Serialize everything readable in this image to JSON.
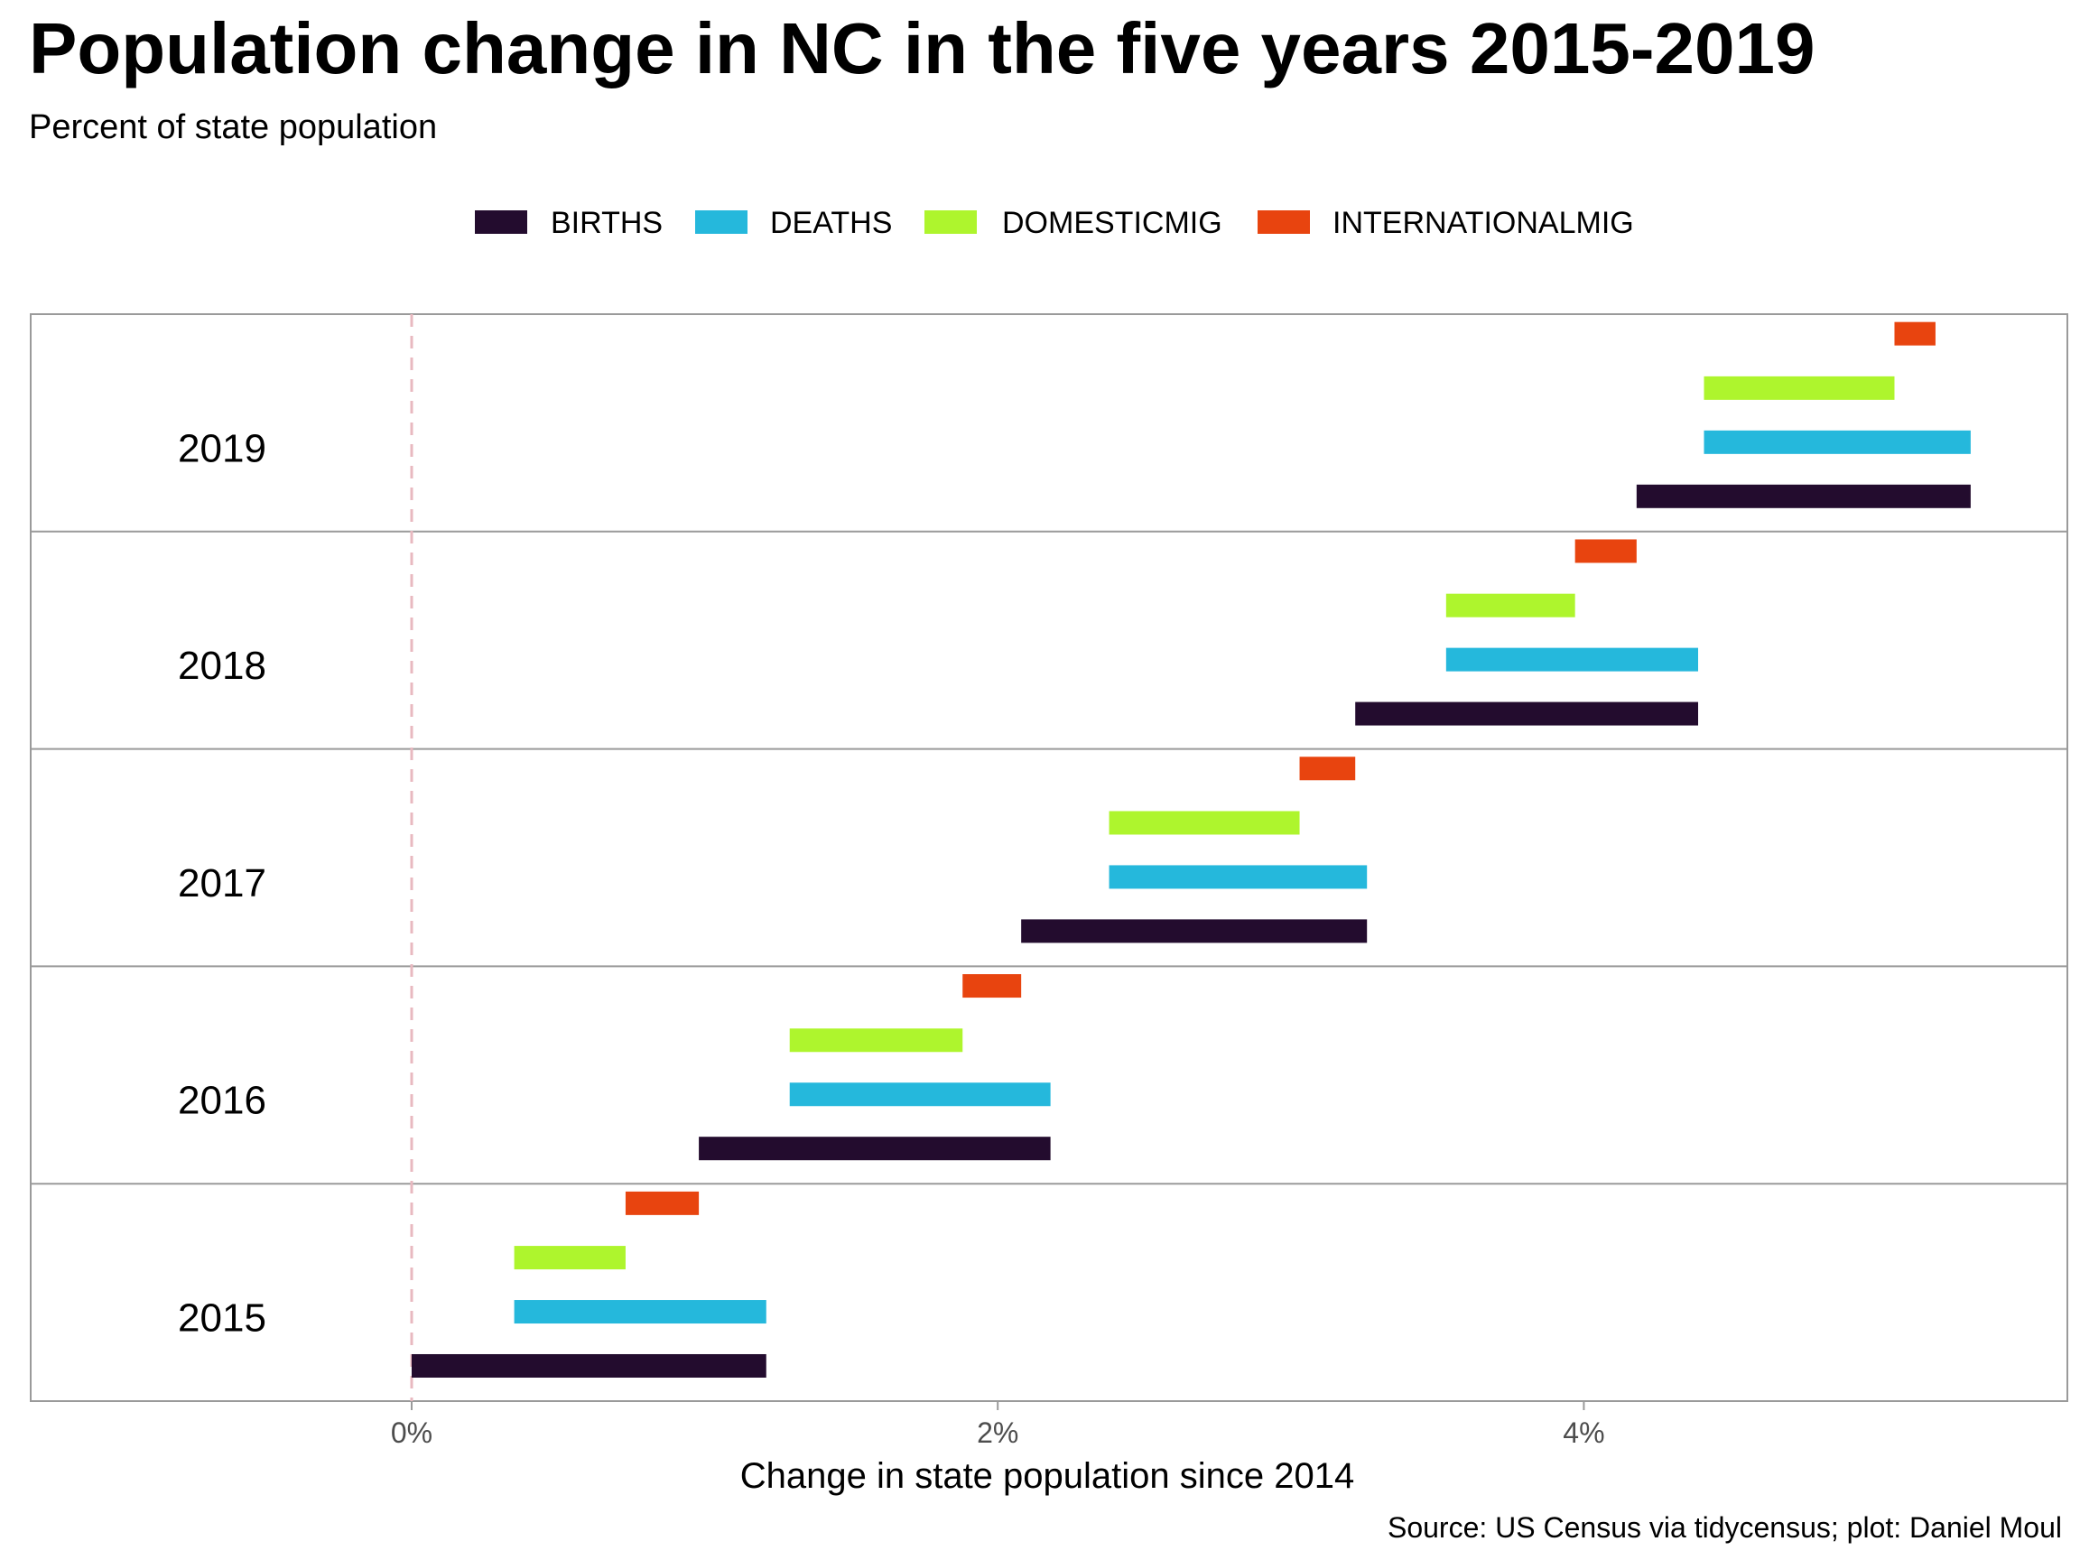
{
  "colors": {
    "background": "#ffffff",
    "panel_border": "#9a9a9a",
    "zero_line": "#e8b9c0",
    "births": "#230c2e",
    "deaths": "#25b8dc",
    "domesticmig": "#aef52d",
    "internationalmig": "#e8440f",
    "tick_text": "#4d4d4d"
  },
  "chart_data": {
    "type": "waterfall-bar",
    "title": "Population change in NC in the five years 2015-2019",
    "subtitle": "Percent of state population",
    "xlabel": "Change in state population since 2014",
    "caption": "Source: US Census via tidycensus; plot: Daniel Moul",
    "x_ticks": [
      "0%",
      "2%",
      "4%"
    ],
    "x_tick_values": [
      0,
      2,
      4
    ],
    "xlim": [
      -1.3,
      5.65
    ],
    "legend_position": "top",
    "legend": [
      {
        "key": "births",
        "label": "BIRTHS",
        "color": "#230c2e"
      },
      {
        "key": "deaths",
        "label": "DEATHS",
        "color": "#25b8dc"
      },
      {
        "key": "domesticmig",
        "label": "DOMESTICMIG",
        "color": "#aef52d"
      },
      {
        "key": "internationalmig",
        "label": "INTERNATIONALMIG",
        "color": "#e8440f"
      }
    ],
    "facets": [
      {
        "year": "2019",
        "segments": [
          {
            "component": "births",
            "start": 4.18,
            "end": 5.32
          },
          {
            "component": "deaths",
            "start": 4.41,
            "end": 5.32
          },
          {
            "component": "domesticmig",
            "start": 4.41,
            "end": 5.06
          },
          {
            "component": "internationalmig",
            "start": 5.06,
            "end": 5.2
          }
        ]
      },
      {
        "year": "2018",
        "segments": [
          {
            "component": "births",
            "start": 3.22,
            "end": 4.39
          },
          {
            "component": "deaths",
            "start": 3.53,
            "end": 4.39
          },
          {
            "component": "domesticmig",
            "start": 3.53,
            "end": 3.97
          },
          {
            "component": "internationalmig",
            "start": 3.97,
            "end": 4.18
          }
        ]
      },
      {
        "year": "2017",
        "segments": [
          {
            "component": "births",
            "start": 2.08,
            "end": 3.26
          },
          {
            "component": "deaths",
            "start": 2.38,
            "end": 3.26
          },
          {
            "component": "domesticmig",
            "start": 2.38,
            "end": 3.03
          },
          {
            "component": "internationalmig",
            "start": 3.03,
            "end": 3.22
          }
        ]
      },
      {
        "year": "2016",
        "segments": [
          {
            "component": "births",
            "start": 0.98,
            "end": 2.18
          },
          {
            "component": "deaths",
            "start": 1.29,
            "end": 2.18
          },
          {
            "component": "domesticmig",
            "start": 1.29,
            "end": 1.88
          },
          {
            "component": "internationalmig",
            "start": 1.88,
            "end": 2.08
          }
        ]
      },
      {
        "year": "2015",
        "segments": [
          {
            "component": "births",
            "start": 0.0,
            "end": 1.21
          },
          {
            "component": "deaths",
            "start": 0.35,
            "end": 1.21
          },
          {
            "component": "domesticmig",
            "start": 0.35,
            "end": 0.73
          },
          {
            "component": "internationalmig",
            "start": 0.73,
            "end": 0.98
          }
        ]
      }
    ]
  }
}
